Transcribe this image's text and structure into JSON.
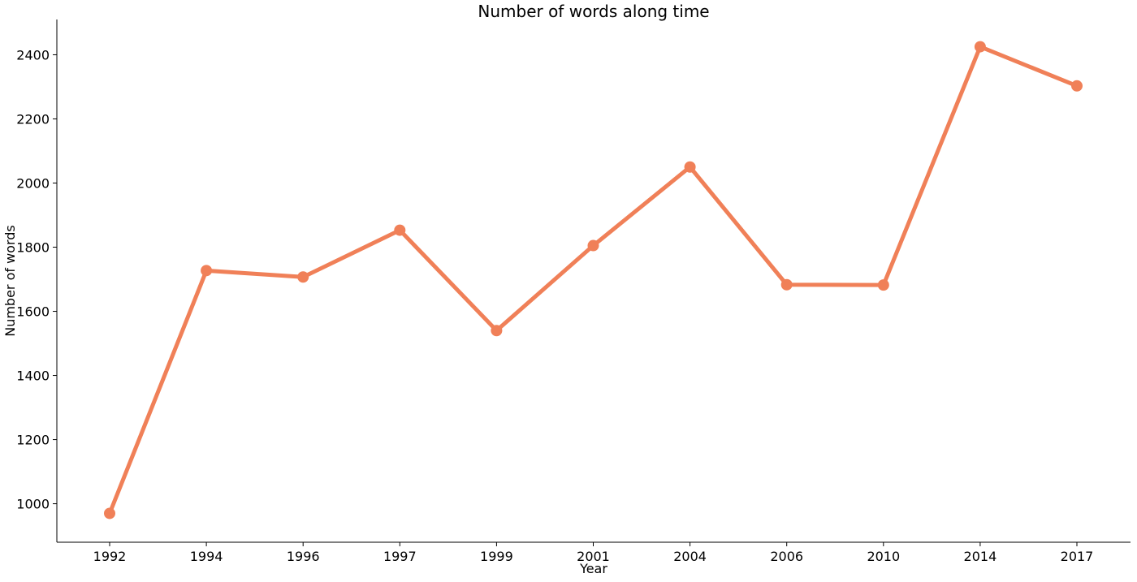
{
  "chart_data": {
    "type": "line",
    "title": "Number of words along time",
    "xlabel": "Year",
    "ylabel": "Number of words",
    "categories": [
      "1992",
      "1994",
      "1996",
      "1997",
      "1999",
      "2001",
      "2004",
      "2006",
      "2010",
      "2014",
      "2017"
    ],
    "series": [
      {
        "values": [
          970,
          1727,
          1707,
          1853,
          1540,
          1805,
          2050,
          1683,
          1682,
          2425,
          2303
        ],
        "color": "#F08058"
      }
    ],
    "ylim": [
      880,
      2510
    ],
    "yticks": [
      1000,
      1200,
      1400,
      1600,
      1800,
      2000,
      2200,
      2400
    ],
    "grid": false,
    "legend": "none",
    "spines": [
      "left",
      "bottom"
    ]
  }
}
